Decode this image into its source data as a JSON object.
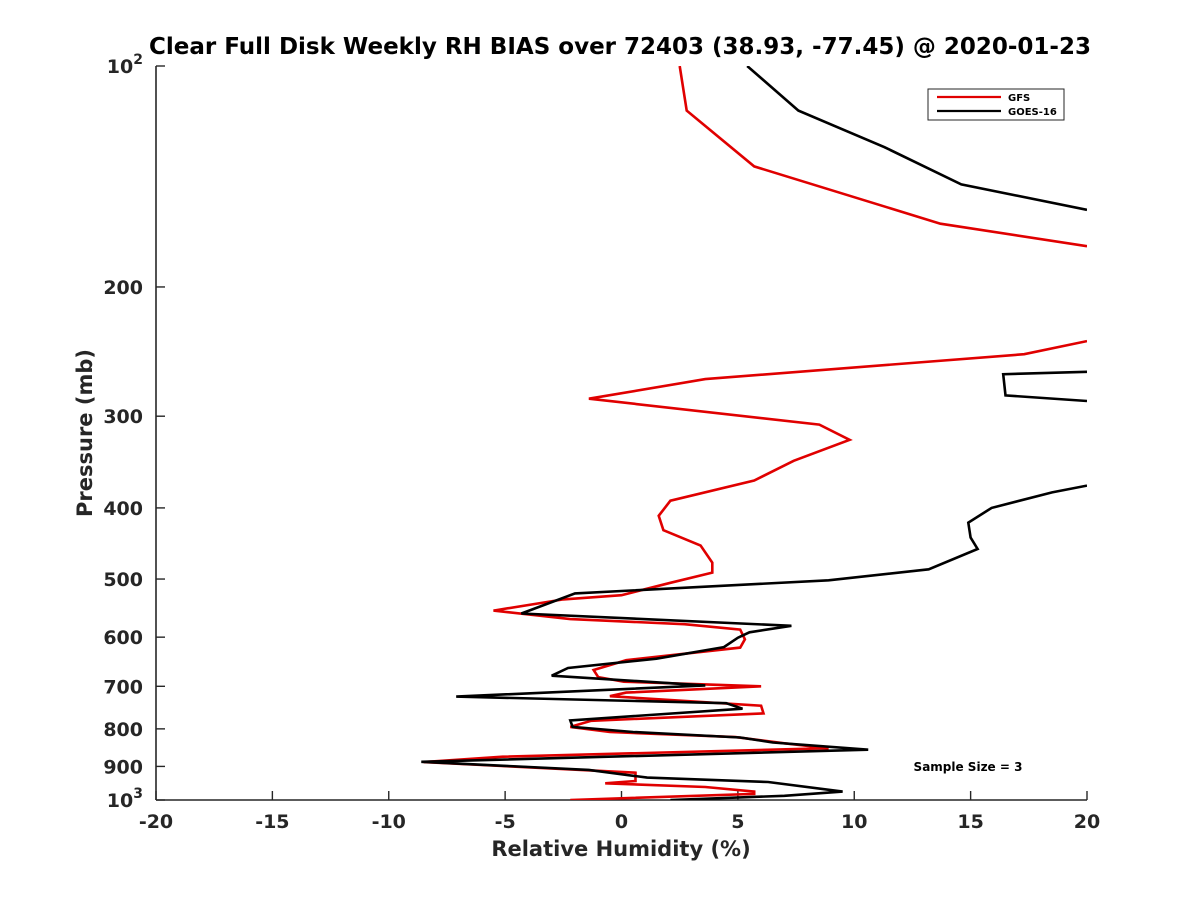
{
  "chart_data": {
    "type": "line",
    "title": "Clear Full Disk Weekly RH BIAS over 72403 (38.93, -77.45) @ 2020-01-23",
    "xlabel": "Relative Humidity (%)",
    "ylabel": "Pressure (mb)",
    "xlim": [
      -20,
      20
    ],
    "ylim": [
      100,
      1000
    ],
    "yscale": "log",
    "y_reversed": true,
    "grid": false,
    "legend_placement": "top-right",
    "x_ticks": [
      "-20",
      "-15",
      "-10",
      "-5",
      "0",
      "5",
      "10",
      "15",
      "20"
    ],
    "y_ticks": [
      {
        "value": 100,
        "base": "10",
        "exp": "2"
      },
      {
        "value": 200,
        "label": "200"
      },
      {
        "value": 300,
        "label": "300"
      },
      {
        "value": 400,
        "label": "400"
      },
      {
        "value": 500,
        "label": "500"
      },
      {
        "value": 600,
        "label": "600"
      },
      {
        "value": 700,
        "label": "700"
      },
      {
        "value": 800,
        "label": "800"
      },
      {
        "value": 900,
        "label": "900"
      },
      {
        "value": 1000,
        "base": "10",
        "exp": "3"
      }
    ],
    "annotation": "Sample Size = 3",
    "series": [
      {
        "name": "GFS",
        "color": "#e00000",
        "segments": [
          [
            [
              2.5,
              100
            ],
            [
              2.8,
              115
            ],
            [
              5.7,
              137
            ],
            [
              13.7,
              164
            ],
            [
              20,
              176
            ]
          ],
          [
            [
              20,
              237
            ],
            [
              17.3,
              247
            ],
            [
              3.6,
              267
            ],
            [
              -1.4,
              284
            ],
            [
              8.5,
              308
            ],
            [
              9.8,
              323
            ],
            [
              7.4,
              345
            ],
            [
              5.7,
              367
            ],
            [
              2.1,
              391
            ],
            [
              1.6,
              410
            ],
            [
              1.8,
              429
            ],
            [
              3.4,
              450
            ],
            [
              3.9,
              475
            ],
            [
              3.9,
              490
            ],
            [
              2.1,
              506
            ],
            [
              0,
              526
            ],
            [
              -2.5,
              533
            ],
            [
              -5.5,
              552
            ],
            [
              -2.2,
              567
            ],
            [
              2.7,
              576
            ],
            [
              5.1,
              586
            ],
            [
              5.3,
              604
            ],
            [
              5.1,
              620
            ],
            [
              0.2,
              645
            ],
            [
              -1.2,
              665
            ],
            [
              -1.0,
              680
            ],
            [
              0.1,
              690
            ],
            [
              6.0,
              700
            ],
            [
              0.2,
              714
            ],
            [
              -0.5,
              722
            ],
            [
              6.0,
              744
            ],
            [
              6.1,
              762
            ],
            [
              -1.3,
              780
            ],
            [
              -2.2,
              795
            ],
            [
              -0.5,
              808
            ],
            [
              4.9,
              821
            ],
            [
              7.0,
              837
            ],
            [
              8.9,
              850
            ],
            [
              -5.1,
              873
            ],
            [
              -8.5,
              888
            ],
            [
              0.6,
              918
            ],
            [
              0.6,
              942
            ],
            [
              -0.7,
              949
            ],
            [
              3.6,
              960
            ],
            [
              5.7,
              974
            ],
            [
              5.7,
              981
            ],
            [
              -2.2,
              1000
            ]
          ]
        ]
      },
      {
        "name": "GOES-16",
        "color": "#000000",
        "segments": [
          [
            [
              5.4,
              100
            ],
            [
              7.6,
              115
            ],
            [
              11.3,
              129
            ],
            [
              14.6,
              145
            ],
            [
              20,
              157
            ]
          ],
          [
            [
              20,
              261
            ],
            [
              16.4,
              263
            ],
            [
              16.5,
              281
            ],
            [
              20,
              286
            ]
          ],
          [
            [
              20,
              373
            ],
            [
              18.5,
              381
            ],
            [
              15.9,
              400
            ],
            [
              14.9,
              419
            ],
            [
              15.0,
              439
            ],
            [
              15.3,
              455
            ],
            [
              13.2,
              485
            ],
            [
              8.9,
              502
            ],
            [
              -2.0,
              523
            ],
            [
              -4.3,
              557
            ],
            [
              7.3,
              579
            ],
            [
              5.5,
              591
            ],
            [
              5.0,
              601
            ],
            [
              4.4,
              619
            ],
            [
              1.5,
              642
            ],
            [
              -2.3,
              661
            ],
            [
              -3.0,
              677
            ],
            [
              3.6,
              698
            ],
            [
              -7.1,
              723
            ],
            [
              4.5,
              738
            ],
            [
              5.2,
              751
            ],
            [
              -2.2,
              779
            ],
            [
              -2.1,
              795
            ],
            [
              0.5,
              808
            ],
            [
              5.1,
              822
            ],
            [
              6.5,
              835
            ],
            [
              10.6,
              854
            ],
            [
              -8.6,
              887
            ],
            [
              -1.4,
              910
            ],
            [
              1.1,
              932
            ],
            [
              6.3,
              945
            ],
            [
              9.5,
              974
            ],
            [
              7.0,
              987
            ],
            [
              2.1,
              1000
            ]
          ]
        ]
      }
    ]
  }
}
